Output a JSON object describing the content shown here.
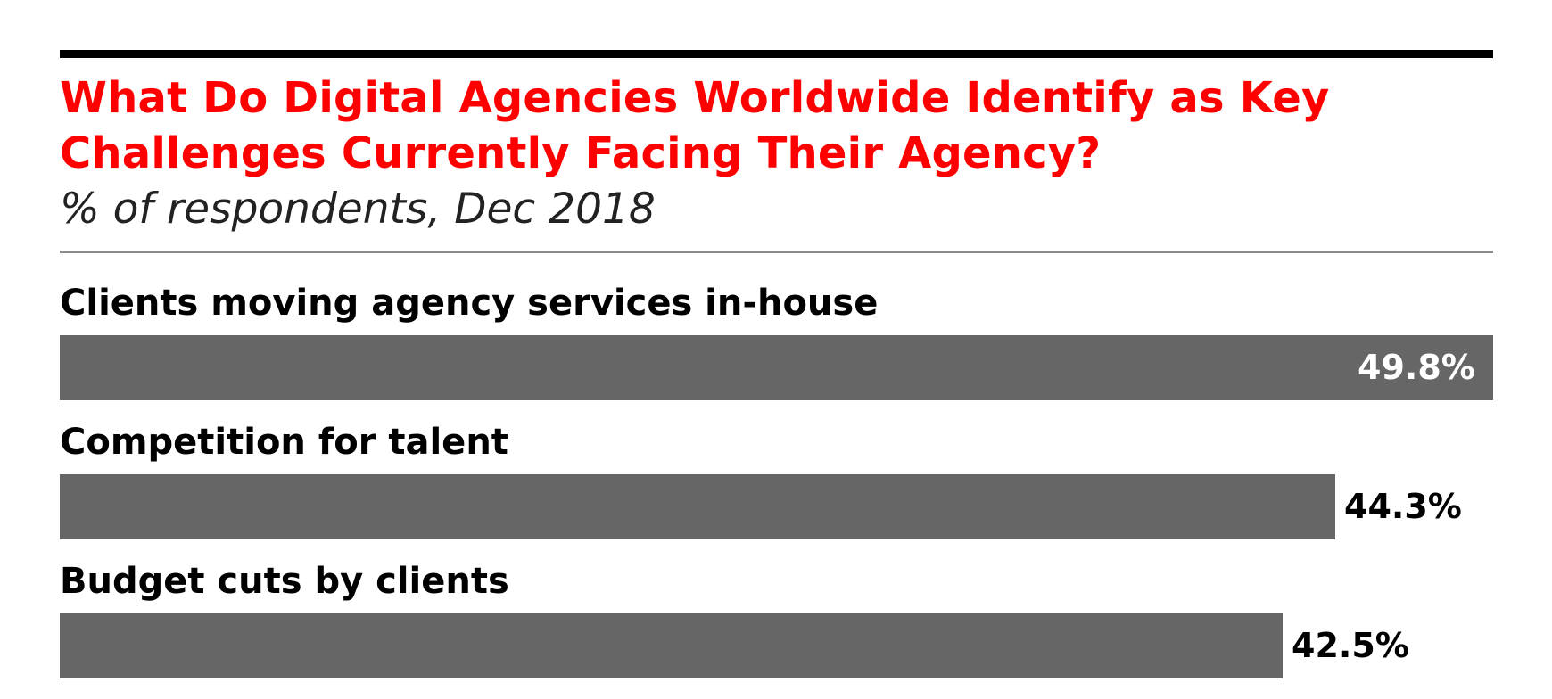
{
  "chart_data": {
    "type": "bar",
    "orientation": "horizontal",
    "title": "What Do Digital Agencies Worldwide Identify as Key Challenges Currently Facing Their Agency?",
    "subtitle": "% of respondents, Dec 2018",
    "categories": [
      "Clients moving agency services in-house",
      "Competition for talent",
      "Budget cuts by clients"
    ],
    "values": [
      49.8,
      44.3,
      42.5
    ],
    "value_labels": [
      "49.8%",
      "44.3%",
      "42.5%"
    ],
    "xlim": [
      0,
      49.8
    ],
    "grid": false,
    "colors": {
      "title": "#ff0000",
      "bar": "#666666",
      "label_inside": "#ffffff",
      "label_outside": "#000000"
    }
  }
}
